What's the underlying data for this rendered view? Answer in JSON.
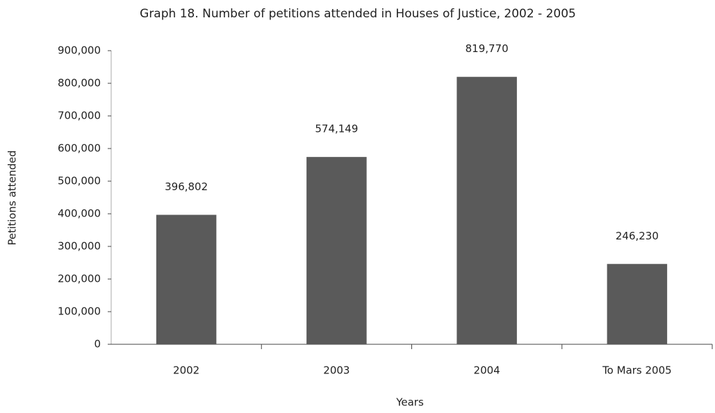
{
  "chart_data": {
    "type": "bar",
    "title": "Graph 18. Number of petitions attended in Houses of Justice, 2002 - 2005",
    "x_label": "Years",
    "y_label": "Petitions attended",
    "categories": [
      "2002",
      "2003",
      "2004",
      "To  Mars 2005"
    ],
    "values": [
      396802,
      574149,
      819770,
      246230
    ],
    "value_labels": [
      "396,802",
      "574,149",
      "819,770",
      "246,230"
    ],
    "color": "#5a5a5a",
    "ylim": [
      0,
      900000
    ],
    "yticks": [
      0,
      {
        "value": 100000,
        "label": "100,000"
      },
      {
        "value": 200000,
        "label": "200,000"
      },
      {
        "value": 300000,
        "label": "300,000"
      },
      {
        "value": 400000,
        "label": "400,000"
      },
      {
        "value": 500000,
        "label": "500,000"
      },
      {
        "value": 600000,
        "label": "600,000"
      },
      {
        "value": 700000,
        "label": "700,000"
      },
      {
        "value": 800000,
        "label": "800,000"
      },
      {
        "value": 900000,
        "label": "900,000"
      }
    ],
    "grid": false
  }
}
